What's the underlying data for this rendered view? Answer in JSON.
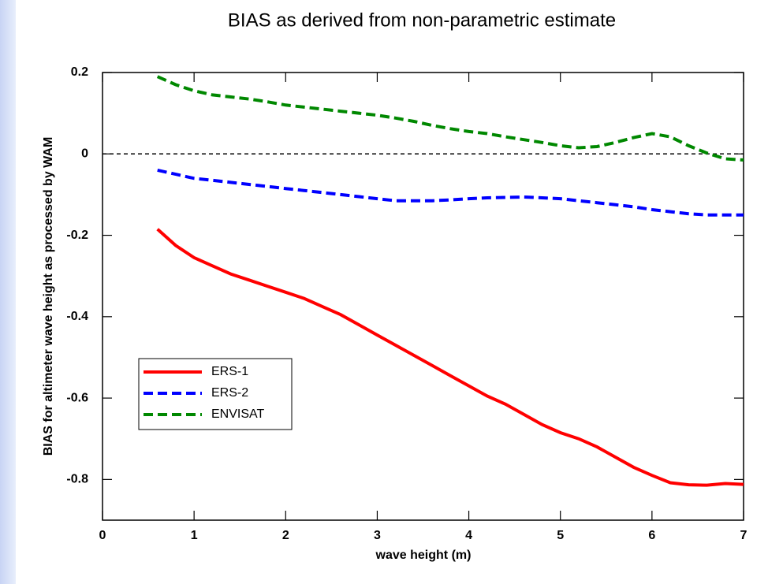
{
  "chart_data": {
    "type": "line",
    "title": "BIAS as derived from non-parametric estimate",
    "xlabel": "wave height (m)",
    "ylabel": "BIAS for altimeter wave height as processed by WAM",
    "x": [
      0.6,
      0.8,
      1.0,
      1.2,
      1.4,
      1.6,
      1.8,
      2.0,
      2.2,
      2.4,
      2.6,
      2.8,
      3.0,
      3.2,
      3.4,
      3.6,
      3.8,
      4.0,
      4.2,
      4.4,
      4.6,
      4.8,
      5.0,
      5.2,
      5.4,
      5.6,
      5.8,
      6.0,
      6.2,
      6.4,
      6.6,
      6.8,
      7.0
    ],
    "series": [
      {
        "name": "ERS-1",
        "color": "#ff0000",
        "linestyle": "solid",
        "values": [
          -0.185,
          -0.225,
          -0.255,
          -0.275,
          -0.295,
          -0.31,
          -0.325,
          -0.34,
          -0.355,
          -0.375,
          -0.395,
          -0.42,
          -0.445,
          -0.47,
          -0.495,
          -0.52,
          -0.545,
          -0.57,
          -0.595,
          -0.615,
          -0.64,
          -0.665,
          -0.685,
          -0.7,
          -0.72,
          -0.745,
          -0.77,
          -0.79,
          -0.808,
          -0.813,
          -0.814,
          -0.81,
          -0.812
        ]
      },
      {
        "name": "ERS-2",
        "color": "#0000ff",
        "linestyle": "dashed",
        "values": [
          -0.04,
          -0.05,
          -0.06,
          -0.065,
          -0.07,
          -0.075,
          -0.08,
          -0.085,
          -0.09,
          -0.095,
          -0.1,
          -0.105,
          -0.11,
          -0.115,
          -0.115,
          -0.115,
          -0.113,
          -0.11,
          -0.108,
          -0.107,
          -0.106,
          -0.108,
          -0.11,
          -0.115,
          -0.12,
          -0.125,
          -0.13,
          -0.137,
          -0.142,
          -0.147,
          -0.15,
          -0.15,
          -0.15
        ]
      },
      {
        "name": "ENVISAT",
        "color": "#008800",
        "linestyle": "dashed",
        "values": [
          0.19,
          0.17,
          0.155,
          0.145,
          0.14,
          0.135,
          0.128,
          0.12,
          0.115,
          0.11,
          0.105,
          0.1,
          0.095,
          0.088,
          0.08,
          0.07,
          0.062,
          0.055,
          0.05,
          0.042,
          0.035,
          0.028,
          0.02,
          0.015,
          0.018,
          0.028,
          0.04,
          0.05,
          0.042,
          0.02,
          0.002,
          -0.012,
          -0.015
        ]
      }
    ],
    "xlim": [
      0,
      7
    ],
    "xticks": [
      0,
      1,
      2,
      3,
      4,
      5,
      6,
      7
    ],
    "ylim": [
      -0.9,
      0.2
    ],
    "yticks": [
      0.2,
      0,
      -0.2,
      -0.4,
      -0.6,
      -0.8
    ],
    "zero_line": true,
    "legend": "lower left"
  }
}
